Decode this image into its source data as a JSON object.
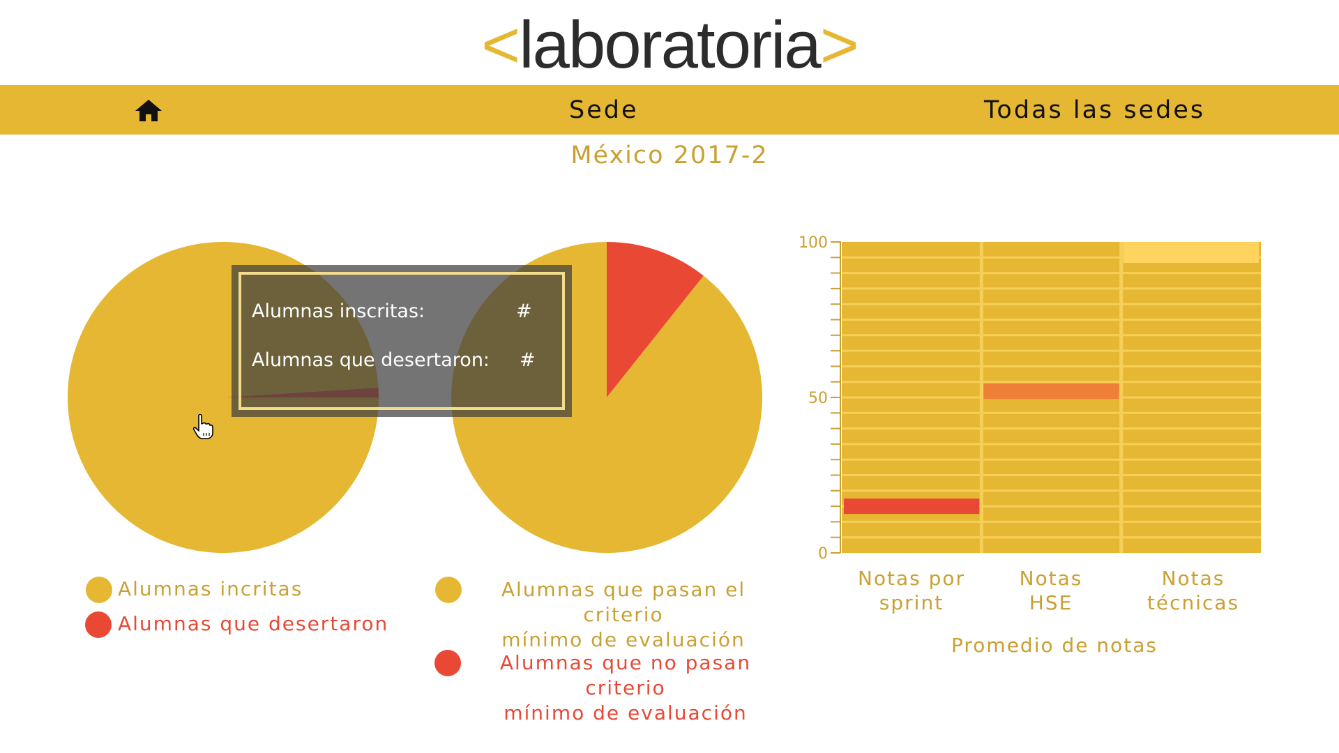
{
  "colors": {
    "accent": "#e6b733",
    "red": "#e84834",
    "orange": "#ef7e36",
    "light": "#ffd45e",
    "text_gold": "#c9a032"
  },
  "logo": {
    "open": "<",
    "word": "laboratoria",
    "close": ">"
  },
  "nav": {
    "home_icon": "home-icon",
    "sede": "Sede",
    "todas": "Todas las sedes"
  },
  "subtitle": "México 2017-2",
  "tooltip": {
    "row1_label": "Alumnas inscritas:",
    "row1_value": "#",
    "row2_label": "Alumnas que desertaron:",
    "row2_value": "#"
  },
  "chart_data": [
    {
      "type": "pie",
      "title": "",
      "slices": [
        {
          "label": "Alumnas incritas",
          "value": 99.0,
          "color": "#e6b733"
        },
        {
          "label": "Alumnas que desertaron",
          "value": 1.0,
          "color": "#e84834"
        }
      ],
      "legend": [
        "Alumnas incritas",
        "Alumnas que desertaron"
      ]
    },
    {
      "type": "pie",
      "title": "",
      "slices": [
        {
          "label": "Alumnas que pasan el criterio mínimo de evaluación",
          "value": 89.3,
          "color": "#e6b733"
        },
        {
          "label": "Alumnas que no pasan criterio mínimo de evaluación",
          "value": 10.7,
          "color": "#e84834"
        }
      ],
      "legend_lines": [
        [
          "Alumnas que pasan el criterio",
          "mínimo de evaluación"
        ],
        [
          "Alumnas que no pasan criterio",
          "mínimo de evaluación"
        ]
      ]
    },
    {
      "type": "bar",
      "categories": [
        [
          "Notas por",
          "sprint"
        ],
        [
          "Notas",
          "HSE"
        ],
        [
          "Notas",
          "técnicas"
        ]
      ],
      "values": [
        15,
        52,
        98
      ],
      "bar_colors": [
        "#e84834",
        "#ef7e36",
        "#ffd45e"
      ],
      "ylim": [
        0,
        100
      ],
      "yticks": [
        0,
        50,
        100
      ],
      "xlabel": "Promedio de notas",
      "ylabel": "",
      "grid": true
    }
  ]
}
